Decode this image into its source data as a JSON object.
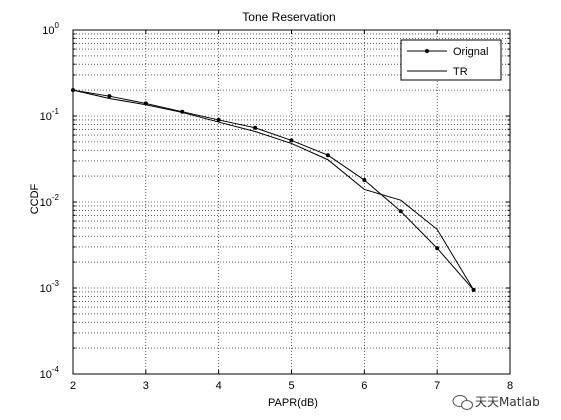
{
  "chart_data": {
    "type": "line",
    "title": "Tone Reservation",
    "xlabel": "PAPR(dB)",
    "ylabel": "CCDF",
    "xlim": [
      2,
      8
    ],
    "ylim": [
      0.0001,
      1
    ],
    "yscale": "log",
    "x_ticks": [
      "2",
      "3",
      "4",
      "5",
      "6",
      "7",
      "8"
    ],
    "y_ticks": [
      {
        "base": "10",
        "exp": "0",
        "value": 1
      },
      {
        "base": "10",
        "exp": "-1",
        "value": 0.1
      },
      {
        "base": "10",
        "exp": "-2",
        "value": 0.01
      },
      {
        "base": "10",
        "exp": "-3",
        "value": 0.001
      },
      {
        "base": "10",
        "exp": "-4",
        "value": 0.0001
      }
    ],
    "grid": true,
    "legend_position": "top-right",
    "series": [
      {
        "name": "Orignal",
        "marker": "dot",
        "color": "#000000",
        "x": [
          2,
          2.5,
          3,
          3.5,
          4,
          4.5,
          5,
          5.5,
          6,
          6.5,
          7,
          7.5
        ],
        "y": [
          0.2,
          0.17,
          0.14,
          0.112,
          0.09,
          0.073,
          0.052,
          0.035,
          0.018,
          0.0078,
          0.0029,
          0.00095
        ]
      },
      {
        "name": "TR",
        "marker": "none",
        "color": "#000000",
        "x": [
          2,
          2.5,
          3,
          3.5,
          4,
          4.5,
          5,
          5.5,
          6,
          6.5,
          7,
          7.5
        ],
        "y": [
          0.2,
          0.16,
          0.135,
          0.11,
          0.085,
          0.066,
          0.048,
          0.031,
          0.014,
          0.0105,
          0.0048,
          0.00095
        ]
      }
    ]
  },
  "watermark": {
    "icon": "wechat-icon",
    "text": "天天Matlab"
  }
}
